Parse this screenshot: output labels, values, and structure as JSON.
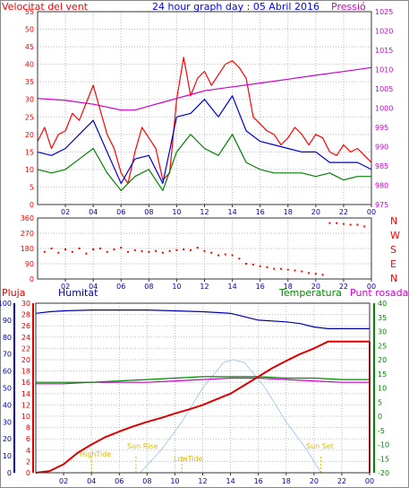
{
  "chart_data": [
    {
      "type": "line",
      "title": "24 hour graph day : 05 Abril 2016",
      "x_ticks": [
        "02",
        "04",
        "06",
        "08",
        "10",
        "12",
        "14",
        "16",
        "18",
        "20",
        "22",
        "00"
      ],
      "left_axis": {
        "label": "Velocitat del vent",
        "ylim": [
          0,
          55
        ],
        "ticks": [
          0,
          5,
          10,
          15,
          20,
          25,
          30,
          35,
          40,
          45,
          50,
          55
        ]
      },
      "right_axis": {
        "label": "Pressió",
        "ylim": [
          975,
          1025
        ],
        "ticks": [
          975,
          980,
          985,
          990,
          995,
          1000,
          1005,
          1010,
          1015,
          1020,
          1025
        ]
      },
      "series": [
        {
          "name": "",
          "color": "#ff0000",
          "axis": "left",
          "x": [
            0,
            0.5,
            1,
            1.5,
            2,
            2.5,
            3,
            3.5,
            4,
            4.5,
            5,
            5.5,
            6,
            6.5,
            7,
            7.5,
            8,
            8.5,
            9,
            9.5,
            10,
            10.5,
            11,
            11.5,
            12,
            12.5,
            13,
            13.5,
            14,
            14.5,
            15,
            15.5,
            16,
            16.5,
            17,
            17.5,
            18,
            18.5,
            19,
            19.5,
            20,
            20.5,
            21,
            21.5,
            22,
            22.5,
            23,
            23.5,
            24
          ],
          "y": [
            18,
            22,
            16,
            20,
            21,
            26,
            24,
            29,
            34,
            27,
            20,
            16,
            9,
            6,
            15,
            22,
            19,
            16,
            7,
            9,
            30,
            42,
            31,
            36,
            38,
            34,
            37,
            40,
            41,
            39,
            36,
            25,
            23,
            21,
            20,
            17,
            19,
            22,
            20,
            17,
            20,
            19,
            15,
            14,
            17,
            15,
            16,
            14,
            12
          ]
        },
        {
          "name": "",
          "color": "#0000cc",
          "axis": "left",
          "x": [
            0,
            1,
            2,
            3,
            4,
            5,
            6,
            7,
            8,
            9,
            10,
            11,
            12,
            13,
            14,
            15,
            16,
            17,
            18,
            19,
            20,
            21,
            22,
            23,
            24
          ],
          "y": [
            15,
            14,
            16,
            20,
            24,
            15,
            6,
            13,
            14,
            6,
            25,
            26,
            30,
            25,
            31,
            21,
            18,
            17,
            16,
            15,
            15,
            12,
            12,
            12,
            10
          ]
        },
        {
          "name": "",
          "color": "#008000",
          "axis": "left",
          "x": [
            0,
            1,
            2,
            3,
            4,
            5,
            6,
            7,
            8,
            9,
            10,
            11,
            12,
            13,
            14,
            15,
            16,
            17,
            18,
            19,
            20,
            21,
            22,
            23,
            24
          ],
          "y": [
            10,
            9,
            10,
            13,
            16,
            9,
            4,
            8,
            10,
            4,
            15,
            20,
            16,
            14,
            20,
            12,
            10,
            9,
            9,
            9,
            8,
            9,
            7,
            8,
            8
          ]
        },
        {
          "name": "",
          "color": "#cc00cc",
          "axis": "right",
          "x": [
            0,
            2,
            4,
            6,
            7,
            8,
            9,
            10,
            11,
            12,
            14,
            16,
            18,
            20,
            22,
            24
          ],
          "y": [
            1002.5,
            1002,
            1001,
            999.5,
            999.5,
            1000.5,
            1001.5,
            1002.5,
            1003.5,
            1004.5,
            1005.5,
            1006.5,
            1007.5,
            1008.5,
            1009.5,
            1010.5
          ]
        }
      ]
    },
    {
      "type": "scatter",
      "x_ticks": [
        "02",
        "04",
        "06",
        "08",
        "10",
        "12",
        "14",
        "16",
        "18",
        "20",
        "22",
        "00"
      ],
      "ylim": [
        0,
        360
      ],
      "y_ticks": [
        0,
        90,
        180,
        270,
        360
      ],
      "compass_labels": [
        "N",
        "W",
        "S",
        "E",
        "N"
      ],
      "series": [
        {
          "name": "",
          "color": "#ff0000",
          "x": [
            0.5,
            1,
            1.5,
            2,
            2.5,
            3,
            3.5,
            4,
            4.5,
            5,
            5.5,
            6,
            6.5,
            7,
            7.5,
            8,
            8.5,
            9,
            9.5,
            10,
            10.5,
            11,
            11.5,
            12,
            12.5,
            13,
            13.5,
            14,
            14.5,
            15,
            15.5,
            16,
            16.5,
            17,
            17.5,
            18,
            18.5,
            19,
            19.5,
            20,
            20.5,
            21,
            21.5,
            22,
            22.5,
            23,
            23.5
          ],
          "y": [
            160,
            180,
            155,
            175,
            160,
            180,
            150,
            175,
            180,
            160,
            175,
            185,
            160,
            170,
            165,
            160,
            165,
            155,
            165,
            170,
            175,
            170,
            185,
            165,
            155,
            140,
            145,
            140,
            120,
            90,
            85,
            75,
            70,
            60,
            60,
            55,
            50,
            45,
            35,
            30,
            25,
            330,
            330,
            325,
            320,
            320,
            310
          ]
        }
      ]
    },
    {
      "type": "line",
      "legend": [
        "Pluja",
        "Humitat",
        "Temperatura",
        "Punt rosada"
      ],
      "x_ticks": [
        "02",
        "04",
        "06",
        "08",
        "10",
        "12",
        "14",
        "16",
        "18",
        "20",
        "22",
        "00"
      ],
      "rain_axis": {
        "ylim": [
          0,
          30
        ],
        "ticks": [
          0,
          2,
          4,
          6,
          8,
          10,
          12,
          14,
          16,
          18,
          20,
          22,
          24,
          26,
          28,
          30
        ]
      },
      "humidity_axis": {
        "ylim": [
          0,
          100
        ],
        "ticks": [
          0,
          10,
          20,
          30,
          40,
          50,
          60,
          70,
          80,
          90,
          100
        ]
      },
      "temperature_axis": {
        "ylim": [
          -20,
          40
        ],
        "ticks": [
          -20,
          -15,
          -10,
          -5,
          0,
          5,
          10,
          15,
          20,
          25,
          30,
          35,
          40
        ]
      },
      "annotations": [
        "Sun Rise",
        "Sun Set",
        "HighTide",
        "LowTide"
      ],
      "series": [
        {
          "name": "Pluja",
          "color": "#dd0000",
          "axis": "rain",
          "x": [
            0,
            1,
            2,
            3,
            4,
            5,
            6,
            7,
            8,
            9,
            10,
            11,
            12,
            13,
            14,
            15,
            16,
            17,
            18,
            19,
            20,
            21,
            22,
            23,
            24
          ],
          "y": [
            0,
            0.3,
            1.5,
            3.5,
            5,
            6.3,
            7.3,
            8.2,
            9,
            9.7,
            10.5,
            11.2,
            12,
            13,
            14,
            15.5,
            17,
            18.5,
            19.8,
            21,
            22,
            23.2,
            23.2,
            23.2,
            23.2
          ]
        },
        {
          "name": "Humitat",
          "color": "#0000aa",
          "axis": "humidity",
          "x": [
            0,
            1,
            2,
            4,
            6,
            8,
            10,
            12,
            14,
            15,
            16,
            18,
            19,
            20,
            21,
            22,
            23,
            24
          ],
          "y": [
            94,
            95,
            95.5,
            96,
            96,
            96,
            95.5,
            95,
            94,
            92,
            90,
            89,
            88,
            86,
            85,
            85,
            85,
            85
          ]
        },
        {
          "name": "Temperatura",
          "color": "#008800",
          "axis": "temperature",
          "x": [
            0,
            2,
            4,
            6,
            8,
            10,
            12,
            14,
            16,
            18,
            20,
            22,
            24
          ],
          "y": [
            12,
            12,
            12,
            12.5,
            13,
            13.5,
            14,
            14,
            14,
            13.5,
            13.5,
            13,
            13
          ]
        },
        {
          "name": "Punt rosada",
          "color": "#cc00cc",
          "axis": "temperature",
          "x": [
            0,
            2,
            4,
            6,
            8,
            10,
            12,
            14,
            16,
            18,
            20,
            22,
            24
          ],
          "y": [
            11.5,
            11.5,
            12,
            12,
            12,
            12.5,
            13,
            13.5,
            13.5,
            13,
            12.5,
            12,
            12
          ]
        },
        {
          "name": "",
          "color": "#aaccee",
          "axis": "temperature",
          "x": [
            7.5,
            9,
            10.5,
            12,
            13.5,
            14.2,
            15,
            16.5,
            18,
            19.5,
            20.5
          ],
          "y": [
            -20,
            -12,
            -2,
            10,
            19,
            20,
            19,
            10,
            -2,
            -12,
            -20
          ]
        }
      ]
    }
  ]
}
